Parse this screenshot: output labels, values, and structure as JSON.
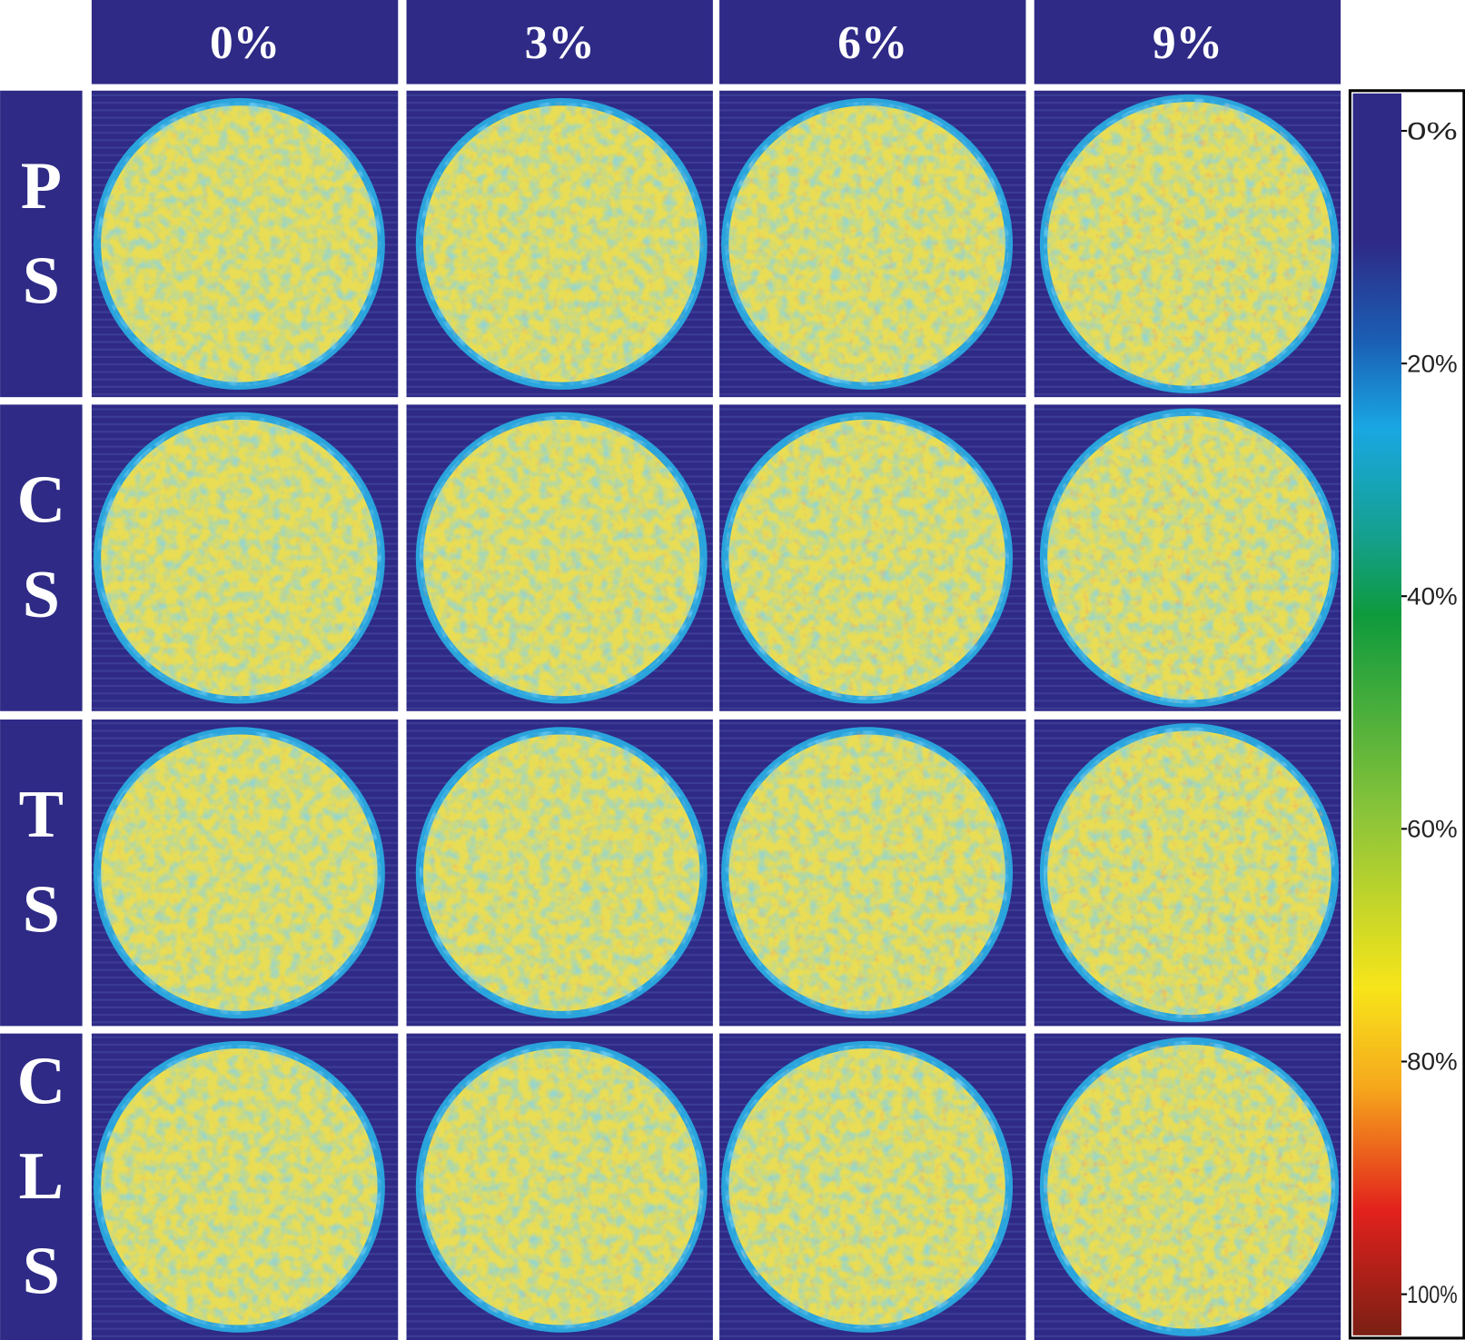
{
  "columns": [
    "0%",
    "3%",
    "6%",
    "9%"
  ],
  "rows": [
    "PS",
    "CS",
    "TS",
    "CLS"
  ],
  "colorbar": {
    "ticks": [
      "0%",
      "20%",
      "40%",
      "60%",
      "80%",
      "100%"
    ]
  }
}
